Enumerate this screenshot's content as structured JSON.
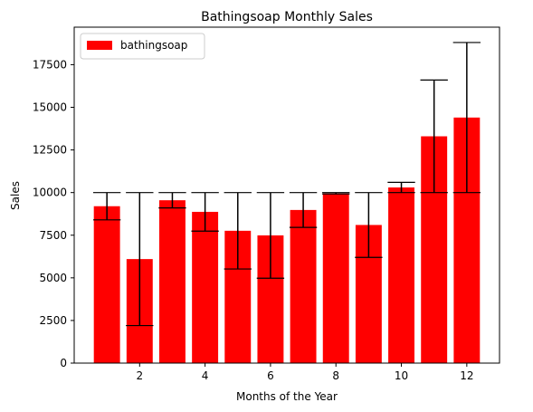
{
  "chart_data": {
    "type": "bar",
    "title": "Bathingsoap Monthly Sales",
    "xlabel": "Months of the Year",
    "ylabel": "Sales",
    "legend": {
      "placement": "upper-left",
      "entries": [
        "bathingsoap"
      ]
    },
    "grid": false,
    "xlim": [
      0,
      13
    ],
    "ylim": [
      0,
      19700
    ],
    "x_ticks": [
      2,
      4,
      6,
      8,
      10,
      12
    ],
    "y_ticks": [
      0,
      2500,
      5000,
      7500,
      10000,
      12500,
      15000,
      17500
    ],
    "x": [
      1,
      2,
      3,
      4,
      5,
      6,
      7,
      8,
      9,
      10,
      11,
      12
    ],
    "series": [
      {
        "name": "bathingsoap",
        "color": "#ff0000",
        "values": [
          9200,
          6100,
          9550,
          8870,
          7760,
          7490,
          8980,
          9960,
          8100,
          10300,
          13300,
          14400
        ],
        "error_low": [
          8400,
          2200,
          9100,
          7740,
          5520,
          4980,
          7960,
          9920,
          6200,
          10000,
          10000,
          10000
        ],
        "error_high": [
          10000,
          10000,
          10000,
          10000,
          10000,
          10000,
          10000,
          10000,
          10000,
          10600,
          16600,
          18800
        ]
      }
    ]
  },
  "colors": {
    "bar": "#ff0000",
    "errorbar": "#000000",
    "axes": "#000000"
  }
}
